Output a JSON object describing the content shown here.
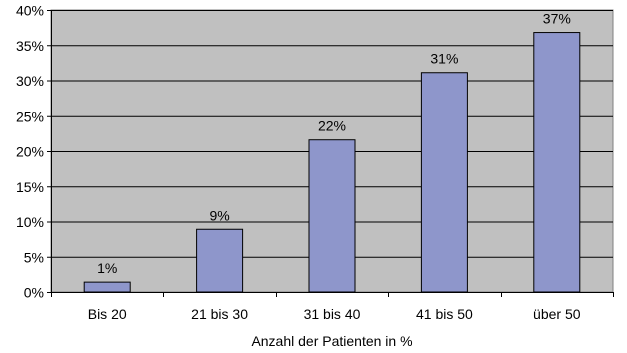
{
  "chart_data": {
    "type": "bar",
    "title": "",
    "xlabel": "Anzahl der Patienten in %",
    "ylabel": "",
    "categories": [
      "Bis 20",
      "21 bis 30",
      "31 bis 40",
      "41 bis 50",
      "über 50"
    ],
    "values": [
      1.4,
      8.9,
      21.6,
      31.1,
      36.8
    ],
    "data_labels": [
      "1%",
      "9%",
      "22%",
      "31%",
      "37%"
    ],
    "ylim": [
      0,
      40
    ],
    "yticks": [
      0,
      5,
      10,
      15,
      20,
      25,
      30,
      35,
      40
    ],
    "ytick_labels": [
      "0%",
      "5%",
      "10%",
      "15%",
      "20%",
      "25%",
      "30%",
      "35%",
      "40%"
    ],
    "grid": true,
    "legend": "none",
    "colors": {
      "plot_background": "#c0c0c0",
      "bar_fill": "#8e96cb",
      "bar_stroke": "#000000",
      "gridline": "#000000"
    }
  }
}
